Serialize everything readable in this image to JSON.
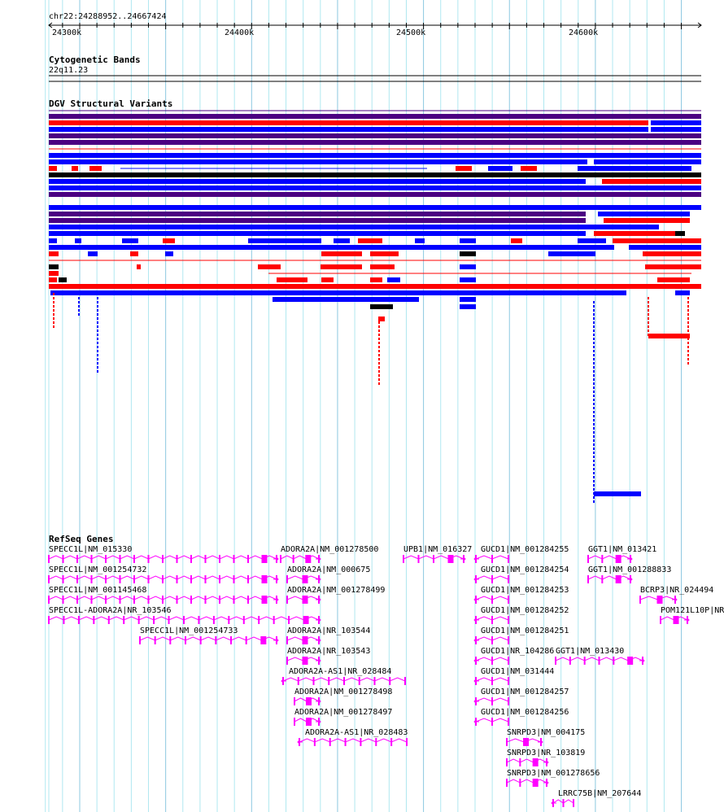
{
  "ruler": {
    "location": "chr22:24288952..24667424",
    "ticks": [
      "24300k",
      "24400k",
      "24500k",
      "24600k"
    ]
  },
  "tracks": {
    "cyto": {
      "title": "Cytogenetic Bands",
      "band": "22q11.23"
    },
    "dgv": {
      "title": "DGV Structural Variants"
    },
    "genes": {
      "title": "RefSeq Genes"
    }
  },
  "colors": {
    "gene": "#ff00ff",
    "gain": "#0000ff",
    "loss": "#ff0000",
    "inversion": "#000000",
    "complex": "#4b0082",
    "grid": "#a8e4ec"
  },
  "genes": [
    "SPECC1L|NM_015330",
    "ADORA2A|NM_001278500",
    "UPB1|NM_016327",
    "GUCD1|NM_001284255",
    "GGT1|NM_013421",
    "SPECC1L|NM_001254732",
    "ADORA2A|NM_000675",
    "GUCD1|NM_001284254",
    "GGT1|NM_001288833",
    "SPECC1L|NM_001145468",
    "ADORA2A|NM_001278499",
    "GUCD1|NM_001284253",
    "BCRP3|NR_024494",
    "SPECC1L-ADORA2A|NR_103546",
    "GUCD1|NM_001284252",
    "POM121L10P|NR",
    "SPECC1L|NM_001254733",
    "ADORA2A|NR_103544",
    "GUCD1|NM_001284251",
    "ADORA2A|NR_103543",
    "GUCD1|NR_104286",
    "GGT1|NM_013430",
    "ADORA2A-AS1|NR_028484",
    "GUCD1|NM_031444",
    "ADORA2A|NM_001278498",
    "GUCD1|NM_001284257",
    "ADORA2A|NM_001278497",
    "GUCD1|NM_001284256",
    "ADORA2A-AS1|NR_028483",
    "SNRPD3|NM_004175",
    "SNRPD3|NR_103819",
    "SNRPD3|NM_001278656",
    "LRRC75B|NM_207644"
  ]
}
